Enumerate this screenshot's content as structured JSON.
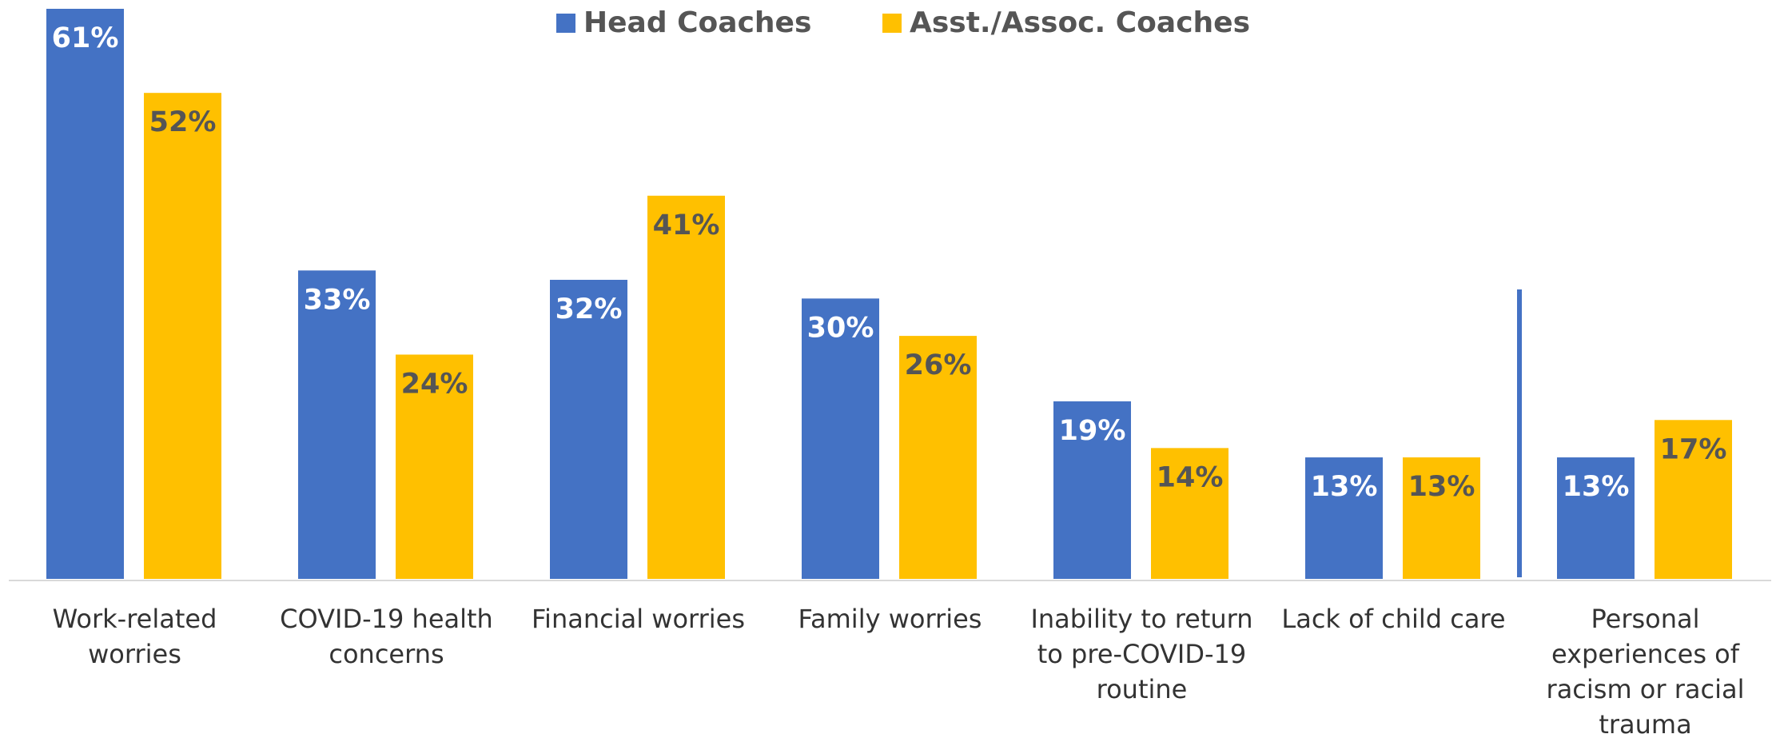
{
  "chart_data": {
    "type": "bar",
    "categories": [
      "Work-related worries",
      "COVID-19 health concerns",
      "Financial worries",
      "Family worries",
      "Inability to return to pre-COVID-19 routine",
      "Lack of child care",
      "Personal experiences of racism or racial trauma"
    ],
    "series": [
      {
        "name": "Head Coaches",
        "color": "#4472c4",
        "values": [
          61,
          33,
          32,
          30,
          19,
          13,
          13
        ],
        "value_labels": [
          "61%",
          "33%",
          "32%",
          "30%",
          "19%",
          "13%",
          "13%"
        ]
      },
      {
        "name": "Asst./Assoc. Coaches",
        "color": "#ffc000",
        "values": [
          52,
          24,
          41,
          26,
          14,
          13,
          17
        ],
        "value_labels": [
          "52%",
          "24%",
          "41%",
          "26%",
          "14%",
          "13%",
          "17%"
        ]
      }
    ],
    "ylim": [
      0,
      61
    ],
    "legend": "top"
  }
}
